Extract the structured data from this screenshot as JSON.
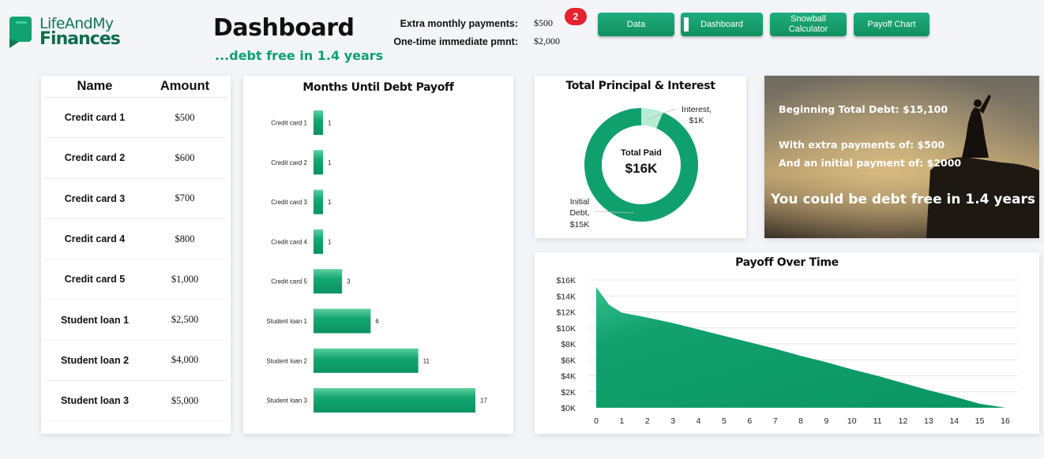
{
  "brand": {
    "line1": "LifeAndMy",
    "line2": "Finances"
  },
  "header": {
    "title": "Dashboard",
    "subtitle": "...debt free in 1.4 years",
    "inputs": [
      {
        "label": "Extra monthly payments:",
        "value": "$500"
      },
      {
        "label": "One-time immediate pmnt:",
        "value": "$2,000"
      }
    ],
    "badge": "2"
  },
  "nav": {
    "data": "Data",
    "dashboard": "Dashboard",
    "snowball_line1": "Snowball",
    "snowball_line2": "Calculator",
    "payoff": "Payoff Chart"
  },
  "debts": {
    "col_name": "Name",
    "col_amount": "Amount",
    "rows": [
      {
        "name": "Credit card 1",
        "amount": "$500"
      },
      {
        "name": "Credit card 2",
        "amount": "$600"
      },
      {
        "name": "Credit card 3",
        "amount": "$700"
      },
      {
        "name": "Credit card 4",
        "amount": "$800"
      },
      {
        "name": "Credit card 5",
        "amount": "$1,000"
      },
      {
        "name": "Student loan 1",
        "amount": "$2,500"
      },
      {
        "name": "Student loan 2",
        "amount": "$4,000"
      },
      {
        "name": "Student loan 3",
        "amount": "$5,000"
      }
    ]
  },
  "summary": {
    "line1": "Beginning Total Debt: $15,100",
    "line2": "With extra payments of: $500",
    "line3": "And an initial payment of: $2000",
    "line4": "You could be debt free in 1.4 years"
  },
  "colors": {
    "accent": "#10a06e",
    "accent_dark": "#0f7a52",
    "interest": "#b8ecd6",
    "badge": "#e52330"
  },
  "chart_data": [
    {
      "type": "bar",
      "orientation": "horizontal",
      "title": "Months Until Debt Payoff",
      "categories": [
        "Credit card 1",
        "Credit card 2",
        "Credit card 3",
        "Credit card 4",
        "Credit card 5",
        "Student loan 1",
        "Student loan 2",
        "Student loan 3"
      ],
      "values": [
        1,
        1,
        1,
        1,
        3,
        6,
        11,
        17
      ],
      "xlim": [
        0,
        17
      ]
    },
    {
      "type": "pie",
      "variant": "donut",
      "title": "Total Principal & Interest",
      "center_label": "Total Paid",
      "center_value": "$16K",
      "slices": [
        {
          "label_line1": "Interest,",
          "label_line2": "$1K",
          "value": 1
        },
        {
          "label_line1": "Initial",
          "label_line2": "Debt,",
          "label_line3": "$15K",
          "value": 15
        }
      ]
    },
    {
      "type": "area",
      "title": "Payoff Over Time",
      "x": [
        0,
        0.5,
        1,
        1.5,
        2,
        3,
        4,
        5,
        6,
        7,
        8,
        9,
        10,
        11,
        12,
        13,
        14,
        15,
        16
      ],
      "y": [
        15100,
        12900,
        11900,
        11600,
        11300,
        10600,
        9800,
        9000,
        8200,
        7400,
        6500,
        5700,
        4800,
        4000,
        3100,
        2200,
        1400,
        500,
        0
      ],
      "xticks": [
        "0",
        "1",
        "2",
        "3",
        "4",
        "5",
        "6",
        "7",
        "8",
        "9",
        "10",
        "11",
        "12",
        "13",
        "14",
        "15",
        "16"
      ],
      "yticks": [
        "$0K",
        "$2K",
        "$4K",
        "$6K",
        "$8K",
        "$10K",
        "$12K",
        "$14K",
        "$16K"
      ],
      "xlim": [
        0,
        16
      ],
      "ylim": [
        0,
        16000
      ],
      "grid": true
    }
  ]
}
